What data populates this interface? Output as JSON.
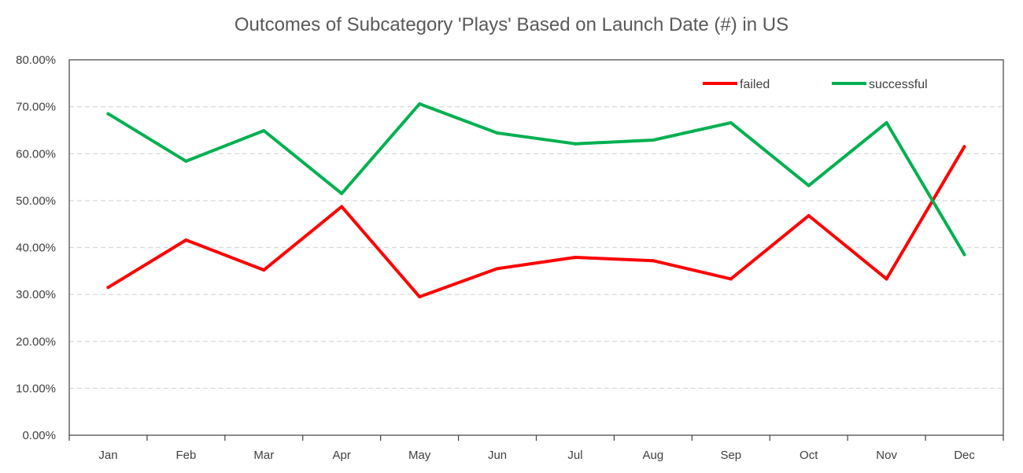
{
  "chart_data": {
    "type": "line",
    "title": "Outcomes of Subcategory 'Plays' Based on Launch Date (#) in US",
    "xlabel": "",
    "ylabel": "",
    "categories": [
      "Jan",
      "Feb",
      "Mar",
      "Apr",
      "May",
      "Jun",
      "Jul",
      "Aug",
      "Sep",
      "Oct",
      "Nov",
      "Dec"
    ],
    "series": [
      {
        "name": "failed",
        "color": "#ff0000",
        "values": [
          31.5,
          41.6,
          35.2,
          48.7,
          29.5,
          35.5,
          37.9,
          37.2,
          33.3,
          46.8,
          33.3,
          61.5
        ]
      },
      {
        "name": "successful",
        "color": "#00b050",
        "values": [
          68.5,
          58.4,
          64.9,
          51.5,
          70.6,
          64.4,
          62.1,
          62.9,
          66.6,
          53.2,
          66.6,
          38.5
        ]
      }
    ],
    "ylim": [
      0,
      80
    ],
    "yticks": [
      "0.00%",
      "10.00%",
      "20.00%",
      "30.00%",
      "40.00%",
      "50.00%",
      "60.00%",
      "70.00%",
      "80.00%"
    ],
    "grid": true,
    "legend_position": "top-right"
  }
}
